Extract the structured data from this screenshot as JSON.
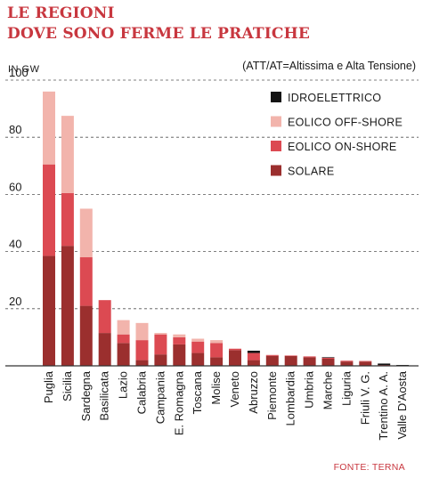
{
  "header": {
    "title_line1": "LE REGIONI",
    "title_line2": "DOVE SONO FERME LE PRATICHE",
    "unit": "IN GW",
    "note": "(ATT/AT=Altissima e Alta Tensione)",
    "source": "FONTE: TERNA"
  },
  "colors": {
    "title": "#c8373f",
    "idroelettrico": "#141414",
    "eolico_offshore": "#f2b4ac",
    "eolico_onshore": "#dc4a52",
    "solare": "#9b2f2e",
    "grid": "#555555"
  },
  "chart_data": {
    "type": "bar",
    "stacked": true,
    "ylabel": "IN GW",
    "ylim": [
      0,
      100
    ],
    "yticks": [
      20,
      40,
      60,
      80,
      100
    ],
    "grid": true,
    "legend_position": "top-right",
    "categories": [
      "Puglia",
      "Sicilia",
      "Sardegna",
      "Basilicata",
      "Lazio",
      "Calabria",
      "Campania",
      "E. Romagna",
      "Toscana",
      "Molise",
      "Veneto",
      "Abruzzo",
      "Piemonte",
      "Lombardia",
      "Umbria",
      "Marche",
      "Liguria",
      "Friuli V. G.",
      "Trentino A. A.",
      "Valle D'Aosta"
    ],
    "series": [
      {
        "name": "SOLARE",
        "key": "solare",
        "values": [
          38.5,
          42,
          21,
          11.5,
          8,
          2,
          4,
          7.5,
          4.5,
          3,
          5.5,
          2,
          3.5,
          3.5,
          3,
          2.5,
          1.5,
          1.5,
          0.3,
          0.1
        ]
      },
      {
        "name": "EOLICO ON-SHORE",
        "key": "eolico_onshore",
        "values": [
          32,
          18.5,
          17,
          11.5,
          3,
          7,
          7,
          2.5,
          4,
          5,
          0.5,
          2.5,
          0.3,
          0.1,
          0.3,
          0.3,
          0.3,
          0.2,
          0,
          0
        ]
      },
      {
        "name": "EOLICO OFF-SHORE",
        "key": "eolico_offshore",
        "values": [
          25.5,
          27,
          17,
          0,
          5,
          6,
          0.5,
          1,
          1,
          1,
          0,
          0,
          0,
          0,
          0,
          0,
          0,
          0,
          0,
          0
        ]
      },
      {
        "name": "IDROELETTRICO",
        "key": "idroelettrico",
        "values": [
          0,
          0,
          0,
          0,
          0,
          0,
          0,
          0,
          0,
          0,
          0,
          0.8,
          0,
          0,
          0,
          0.2,
          0,
          0,
          0.5,
          0.2
        ]
      }
    ],
    "legend": [
      "IDROELETTRICO",
      "EOLICO OFF-SHORE",
      "EOLICO ON-SHORE",
      "SOLARE"
    ]
  }
}
